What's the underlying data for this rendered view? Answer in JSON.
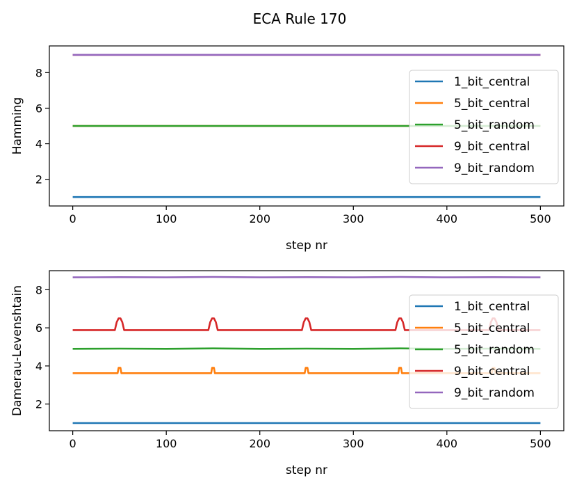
{
  "figure_title": "ECA Rule 170",
  "colors": {
    "1_bit_central": "#1f77b4",
    "5_bit_central": "#ff7f0e",
    "5_bit_random": "#2ca02c",
    "9_bit_central": "#d62728",
    "9_bit_random": "#9467bd"
  },
  "chart_data": [
    {
      "type": "line",
      "title": "",
      "xlabel": "step nr",
      "ylabel": "Hamming",
      "xlim": [
        -25,
        525
      ],
      "ylim": [
        0.5,
        9.5
      ],
      "xticks": [
        0,
        100,
        200,
        300,
        400,
        500
      ],
      "yticks": [
        2,
        4,
        6,
        8
      ],
      "grid": false,
      "legend_position": "right",
      "series": [
        {
          "name": "1_bit_central",
          "x": [
            0,
            500
          ],
          "values": [
            1,
            1
          ]
        },
        {
          "name": "5_bit_central",
          "x": [
            0,
            500
          ],
          "values": [
            5,
            5
          ]
        },
        {
          "name": "5_bit_random",
          "x": [
            0,
            500
          ],
          "values": [
            5,
            5
          ]
        },
        {
          "name": "9_bit_central",
          "x": [
            0,
            500
          ],
          "values": [
            9,
            9
          ]
        },
        {
          "name": "9_bit_random",
          "x": [
            0,
            500
          ],
          "values": [
            9,
            9
          ]
        }
      ]
    },
    {
      "type": "line",
      "title": "",
      "xlabel": "step nr",
      "ylabel": "Damerau-Levenshtain",
      "xlim": [
        -25,
        525
      ],
      "ylim": [
        0.6,
        9.0
      ],
      "xticks": [
        0,
        100,
        200,
        300,
        400,
        500
      ],
      "yticks": [
        2,
        4,
        6,
        8
      ],
      "grid": false,
      "legend_position": "right",
      "series": [
        {
          "name": "1_bit_central",
          "x": [
            0,
            500
          ],
          "values": [
            1,
            1
          ]
        },
        {
          "name": "5_bit_central",
          "x": [
            0,
            48,
            49,
            51,
            52,
            148,
            149,
            151,
            152,
            248,
            249,
            251,
            252,
            348,
            349,
            351,
            352,
            448,
            449,
            451,
            452,
            500
          ],
          "values": [
            3.62,
            3.62,
            3.9,
            3.9,
            3.62,
            3.62,
            3.9,
            3.9,
            3.62,
            3.62,
            3.9,
            3.9,
            3.62,
            3.62,
            3.9,
            3.9,
            3.62,
            3.62,
            3.9,
            3.9,
            3.62,
            3.62
          ]
        },
        {
          "name": "5_bit_random",
          "x": [
            0,
            50,
            100,
            150,
            200,
            250,
            300,
            350,
            400,
            450,
            500
          ],
          "values": [
            4.9,
            4.91,
            4.9,
            4.92,
            4.9,
            4.91,
            4.9,
            4.92,
            4.9,
            4.91,
            4.9
          ]
        },
        {
          "name": "9_bit_central",
          "x": [
            0,
            45,
            47,
            49,
            51,
            53,
            55,
            145,
            147,
            149,
            151,
            153,
            155,
            245,
            247,
            249,
            251,
            253,
            255,
            345,
            347,
            349,
            351,
            353,
            355,
            445,
            447,
            449,
            451,
            453,
            455,
            500
          ],
          "values": [
            5.88,
            5.88,
            6.3,
            6.5,
            6.5,
            6.3,
            5.88,
            5.88,
            6.3,
            6.5,
            6.5,
            6.3,
            5.88,
            5.88,
            6.3,
            6.5,
            6.5,
            6.3,
            5.88,
            5.88,
            6.3,
            6.5,
            6.5,
            6.3,
            5.88,
            5.88,
            6.3,
            6.5,
            6.5,
            6.3,
            5.88,
            5.88
          ]
        },
        {
          "name": "9_bit_random",
          "x": [
            0,
            50,
            100,
            150,
            200,
            250,
            300,
            350,
            400,
            450,
            500
          ],
          "values": [
            8.65,
            8.66,
            8.65,
            8.67,
            8.65,
            8.66,
            8.65,
            8.67,
            8.65,
            8.66,
            8.65
          ]
        }
      ]
    }
  ]
}
